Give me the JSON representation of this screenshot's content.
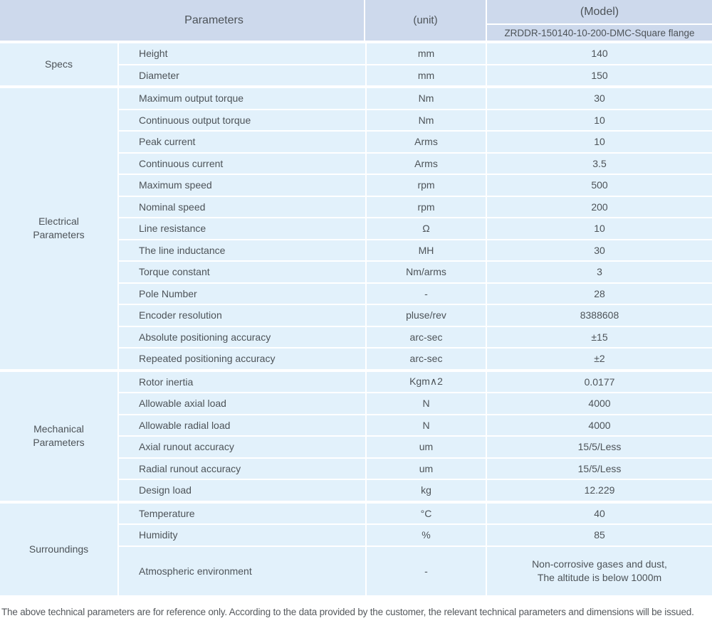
{
  "table": {
    "header": {
      "parameters_label": "Parameters",
      "unit_label": "(unit)",
      "model_label": "(Model)",
      "model_value": "ZRDDR-150140-10-200-DMC-Square flange"
    },
    "groups": [
      {
        "label": "Specs",
        "rows": [
          {
            "param": "Height",
            "unit": "mm",
            "value": "140"
          },
          {
            "param": "Diameter",
            "unit": "mm",
            "value": "150"
          }
        ]
      },
      {
        "label": "Electrical\nParameters",
        "rows": [
          {
            "param": "Maximum output torque",
            "unit": "Nm",
            "value": "30"
          },
          {
            "param": "Continuous output torque",
            "unit": "Nm",
            "value": "10"
          },
          {
            "param": "Peak current",
            "unit": "Arms",
            "value": "10"
          },
          {
            "param": "Continuous current",
            "unit": "Arms",
            "value": "3.5"
          },
          {
            "param": "Maximum speed",
            "unit": "rpm",
            "value": "500"
          },
          {
            "param": "Nominal speed",
            "unit": "rpm",
            "value": "200"
          },
          {
            "param": "Line resistance",
            "unit": "Ω",
            "value": "10"
          },
          {
            "param": "The line inductance",
            "unit": "MH",
            "value": "30"
          },
          {
            "param": "Torque constant",
            "unit": "Nm/arms",
            "value": "3"
          },
          {
            "param": "Pole Number",
            "unit": "-",
            "value": "28"
          },
          {
            "param": "Encoder resolution",
            "unit": "pluse/rev",
            "value": "8388608"
          },
          {
            "param": "Absolute positioning accuracy",
            "unit": "arc-sec",
            "value": "±15"
          },
          {
            "param": "Repeated positioning accuracy",
            "unit": "arc-sec",
            "value": "±2"
          }
        ]
      },
      {
        "label": "Mechanical\nParameters",
        "rows": [
          {
            "param": "Rotor inertia",
            "unit": "Kgm∧2",
            "value": "0.0177"
          },
          {
            "param": "Allowable axial load",
            "unit": "N",
            "value": "4000"
          },
          {
            "param": "Allowable radial load",
            "unit": "N",
            "value": "4000"
          },
          {
            "param": "Axial runout accuracy",
            "unit": "um",
            "value": "15/5/Less"
          },
          {
            "param": "Radial runout accuracy",
            "unit": "um",
            "value": "15/5/Less"
          },
          {
            "param": "Design load",
            "unit": "kg",
            "value": "12.229"
          }
        ]
      },
      {
        "label": "Surroundings",
        "rows": [
          {
            "param": "Temperature",
            "unit": "°C",
            "value": "40"
          },
          {
            "param": "Humidity",
            "unit": "%",
            "value": "85"
          },
          {
            "param": "Atmospheric environment",
            "unit": "-",
            "value": "Non-corrosive gases and dust,\nThe altitude is below 1000m"
          }
        ]
      }
    ],
    "footer_note": "The above technical parameters are for reference only. According to the data provided by the customer, the relevant technical parameters and dimensions will be issued."
  },
  "colors": {
    "header_bg": "#cdd9ec",
    "row_bg": "#e2f1fb",
    "text": "#4d5358",
    "footer_text": "#55595d"
  }
}
